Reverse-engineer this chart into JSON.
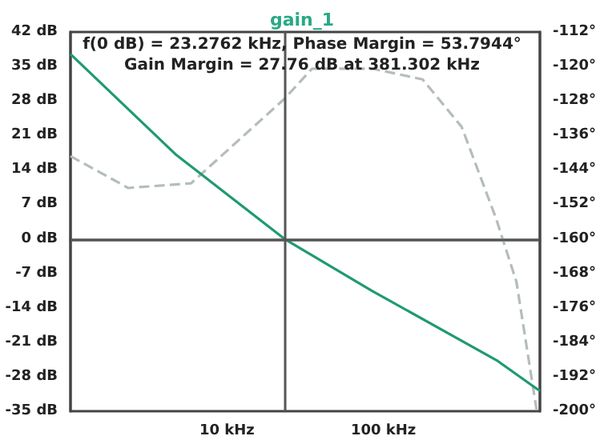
{
  "chart_data": {
    "type": "line",
    "title": "gain_1",
    "annotations": [
      "f(0 dB) = 23.2762 kHz, Phase Margin = 53.7944°",
      "Gain Margin = 27.76 dB at 381.302 kHz"
    ],
    "log": "x",
    "xlim": [
      1,
      1000
    ],
    "xticks": [
      {
        "value": 10,
        "label": "10 kHz"
      },
      {
        "value": 100,
        "label": "100 kHz"
      }
    ],
    "ylim": [
      -35,
      42
    ],
    "yticks": [
      {
        "value": -35,
        "label": "-35 dB"
      },
      {
        "value": -28,
        "label": "-28 dB"
      },
      {
        "value": -21,
        "label": "-21 dB"
      },
      {
        "value": -14,
        "label": "-14 dB"
      },
      {
        "value": -7,
        "label": "-7 dB"
      },
      {
        "value": 0,
        "label": "0 dB"
      },
      {
        "value": 7,
        "label": "7 dB"
      },
      {
        "value": 14,
        "label": "14 dB"
      },
      {
        "value": 21,
        "label": "21 dB"
      },
      {
        "value": 28,
        "label": "28 dB"
      },
      {
        "value": 35,
        "label": "35 dB"
      },
      {
        "value": 42,
        "label": "42 dB"
      }
    ],
    "y2lim": [
      -200,
      -112
    ],
    "y2ticks": [
      {
        "value": -200,
        "label": "-200°"
      },
      {
        "value": -192,
        "label": "-192°"
      },
      {
        "value": -184,
        "label": "-184°"
      },
      {
        "value": -176,
        "label": "-176°"
      },
      {
        "value": -168,
        "label": "-168°"
      },
      {
        "value": -160,
        "label": "-160°"
      },
      {
        "value": -152,
        "label": "-152°"
      },
      {
        "value": -144,
        "label": "-144°"
      },
      {
        "value": -136,
        "label": "-136°"
      },
      {
        "value": -128,
        "label": "-128°"
      },
      {
        "value": -120,
        "label": "-120°"
      },
      {
        "value": -112,
        "label": "-112°"
      }
    ],
    "grid": false,
    "marker": "none",
    "ref_lines": [
      {
        "axis": "x",
        "value": 23.2762,
        "color": "#555555"
      },
      {
        "axis": "y",
        "value": 0,
        "color": "#555555"
      }
    ],
    "series": [
      {
        "color": "#1f9a72",
        "line_style": "solid",
        "x": [
          1,
          4.68,
          23.2762,
          85,
          537,
          1000
        ],
        "values": [
          37.5,
          17.2,
          0,
          -10.6,
          -24.8,
          -30.9
        ]
      },
      {
        "color": "#b4bdb9",
        "line_style": "dashed",
        "axis": "y2",
        "x": [
          1,
          2.34,
          5.9,
          23.3,
          35,
          85,
          178,
          316,
          525,
          708,
          955
        ],
        "values": [
          -140.8,
          -148.2,
          -147.1,
          -127.5,
          -120.5,
          -120.5,
          -123,
          -134,
          -155.3,
          -170,
          -200
        ]
      }
    ]
  }
}
